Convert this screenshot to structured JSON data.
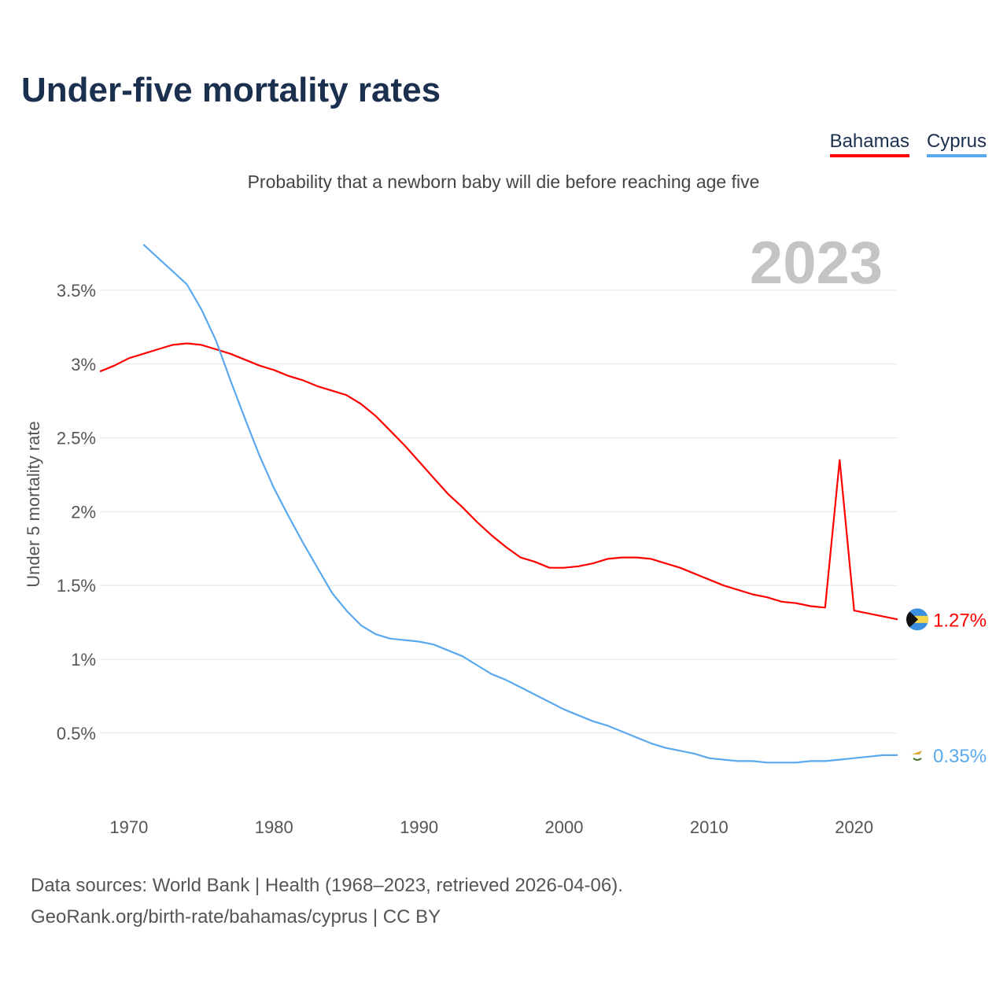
{
  "title": "Under-five mortality rates",
  "subtitle": "Probability that a newborn baby will die before reaching age five",
  "footer": {
    "line1": "Data sources: World Bank | Health (1968–2023, retrieved 2026-04-06).",
    "line2": "GeoRank.org/birth-rate/bahamas/cyprus | CC BY"
  },
  "chart_data": {
    "type": "line",
    "title": "Under-five mortality rates",
    "subtitle": "Probability that a newborn baby will die before reaching age five",
    "xlabel": "",
    "ylabel": "Under 5 mortality rate",
    "year_label": "2023",
    "xlim": [
      1968,
      2023
    ],
    "ylim": [
      0,
      3.85
    ],
    "x_ticks": [
      1970,
      1980,
      1990,
      2000,
      2010,
      2020
    ],
    "y_ticks": [
      0.5,
      1,
      1.5,
      2,
      2.5,
      3,
      3.5
    ],
    "y_tick_labels": [
      "0.5%",
      "1%",
      "1.5%",
      "2%",
      "2.5%",
      "3%",
      "3.5%"
    ],
    "grid": true,
    "legend_position": "top-right",
    "series": [
      {
        "name": "Bahamas",
        "color": "#ff0000",
        "end_label": "1.27%",
        "x_start": 1968,
        "values": [
          2.95,
          2.99,
          3.04,
          3.07,
          3.1,
          3.13,
          3.14,
          3.13,
          3.1,
          3.07,
          3.03,
          2.99,
          2.96,
          2.92,
          2.89,
          2.85,
          2.82,
          2.79,
          2.73,
          2.65,
          2.55,
          2.45,
          2.34,
          2.23,
          2.12,
          2.03,
          1.93,
          1.84,
          1.76,
          1.69,
          1.66,
          1.62,
          1.62,
          1.63,
          1.65,
          1.68,
          1.69,
          1.69,
          1.68,
          1.65,
          1.62,
          1.58,
          1.54,
          1.5,
          1.47,
          1.44,
          1.42,
          1.39,
          1.38,
          1.36,
          1.35,
          2.35,
          1.33,
          1.31,
          1.29,
          1.27
        ]
      },
      {
        "name": "Cyprus",
        "color": "#5aa9ee",
        "end_label": "0.35%",
        "x_start": 1971,
        "values": [
          3.81,
          3.72,
          3.63,
          3.54,
          3.37,
          3.16,
          2.89,
          2.63,
          2.38,
          2.16,
          1.97,
          1.79,
          1.62,
          1.45,
          1.33,
          1.23,
          1.17,
          1.14,
          1.13,
          1.12,
          1.1,
          1.06,
          1.02,
          0.96,
          0.9,
          0.86,
          0.81,
          0.76,
          0.71,
          0.66,
          0.62,
          0.58,
          0.55,
          0.51,
          0.47,
          0.43,
          0.4,
          0.38,
          0.36,
          0.33,
          0.32,
          0.31,
          0.31,
          0.3,
          0.3,
          0.3,
          0.31,
          0.31,
          0.32,
          0.33,
          0.34,
          0.35,
          0.35
        ]
      }
    ]
  }
}
